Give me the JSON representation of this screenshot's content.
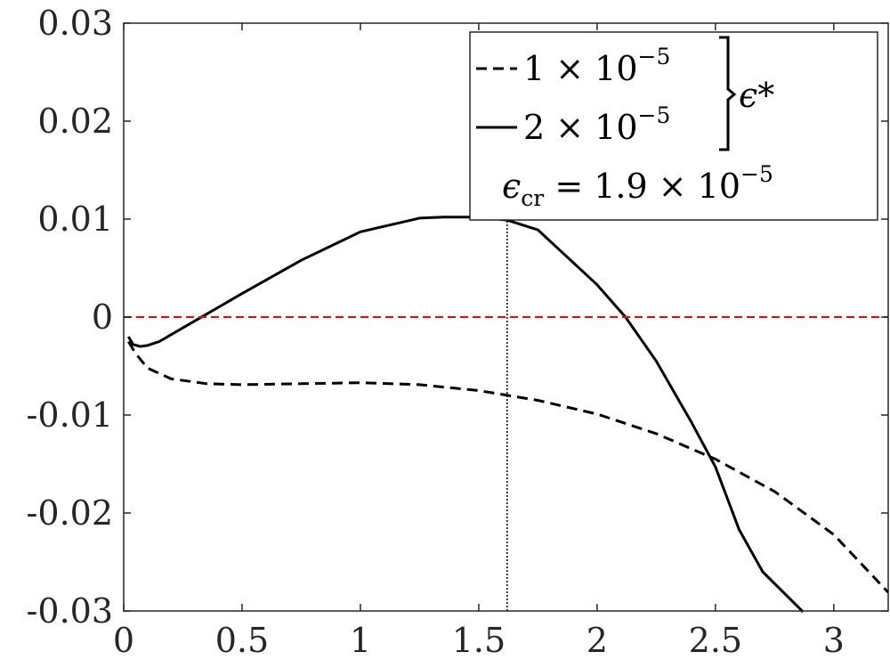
{
  "chart_data": {
    "type": "line",
    "title": "",
    "xlabel": "",
    "ylabel": "",
    "xlim": [
      0,
      3.23
    ],
    "ylim": [
      -0.03,
      0.03
    ],
    "xticks": [
      "0",
      "0.5",
      "1",
      "1.5",
      "2",
      "2.5",
      "3"
    ],
    "yticks": [
      "0.03",
      "0.02",
      "0.01",
      "0",
      "-0.01",
      "-0.02",
      "-0.03"
    ],
    "grid": false,
    "legend_position": "top-right",
    "legend_group_label": "ϵ*",
    "legend_base": [
      "1 × 10",
      "2 × 10"
    ],
    "legend_exp": [
      "−5",
      "−5"
    ],
    "annotation": {
      "symbol": "ϵ",
      "sub": "cr",
      "value_text": " = 1.9 × 10",
      "exp": "−5"
    },
    "series": [
      {
        "name": "1 × 10−5",
        "style": "dashed",
        "color": "#000000",
        "x": [
          0.02,
          0.05,
          0.1,
          0.2,
          0.35,
          0.5,
          0.75,
          1.0,
          1.25,
          1.5,
          1.75,
          2.0,
          2.25,
          2.5,
          2.75,
          3.0,
          3.23
        ],
        "y": [
          -0.0025,
          -0.0037,
          -0.0052,
          -0.0063,
          -0.0068,
          -0.0069,
          -0.0068,
          -0.0067,
          -0.0069,
          -0.0075,
          -0.0085,
          -0.0099,
          -0.0119,
          -0.0145,
          -0.0178,
          -0.0222,
          -0.0281
        ]
      },
      {
        "name": "2 × 10−5",
        "style": "solid",
        "color": "#000000",
        "x": [
          0.02,
          0.04,
          0.07,
          0.1,
          0.15,
          0.25,
          0.35,
          0.5,
          0.75,
          1.0,
          1.25,
          1.35,
          1.5,
          1.62,
          1.75,
          2.0,
          2.12,
          2.25,
          2.4,
          2.5,
          2.6,
          2.7,
          2.8,
          2.87
        ],
        "y": [
          -0.002,
          -0.0028,
          -0.003,
          -0.0029,
          -0.0025,
          -0.0011,
          0.0003,
          0.0024,
          0.0058,
          0.0087,
          0.0101,
          0.0102,
          0.0102,
          0.0099,
          0.0089,
          0.0033,
          0.0,
          -0.0045,
          -0.0108,
          -0.0153,
          -0.0217,
          -0.026,
          -0.0284,
          -0.0301
        ]
      },
      {
        "name": "0",
        "style": "dashed",
        "color": "#ff0000",
        "x": [
          0,
          3.23
        ],
        "y": [
          0,
          0
        ]
      }
    ],
    "vline": {
      "x": 1.62,
      "y_from": -0.03,
      "y_to": 0.0099,
      "style": "dotted"
    }
  }
}
